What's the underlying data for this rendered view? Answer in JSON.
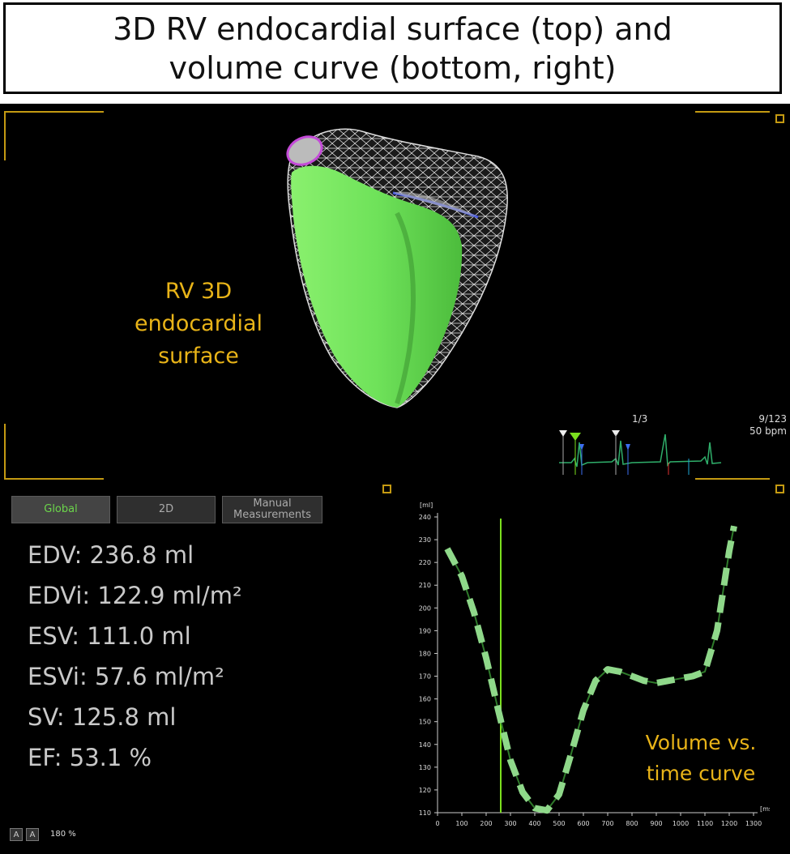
{
  "title": {
    "line1": "3D RV endocardial surface (top) and",
    "line2": "volume curve (bottom, right)"
  },
  "surface_label": [
    "RV 3D",
    "endocardial",
    "surface"
  ],
  "ecg": {
    "frame_fraction": "1/3",
    "frame_counter": "9/123",
    "heart_rate": "50 bpm"
  },
  "tabs": [
    {
      "label": "Global",
      "active": true
    },
    {
      "label": "2D",
      "active": false
    },
    {
      "label_line1": "Manual",
      "label_line2": "Measurements",
      "active": false
    }
  ],
  "measurements": [
    "EDV: 236.8 ml",
    "EDVi: 122.9 ml/m²",
    "ESV: 111.0 ml",
    "ESVi: 57.6 ml/m²",
    "SV: 125.8 ml",
    "EF: 53.1 %"
  ],
  "zoom": {
    "btn1": "A",
    "btn2": "A",
    "level": "180 %"
  },
  "curve_label": [
    "Volume vs.",
    "time curve"
  ],
  "colors": {
    "accent_orange": "#e9b418",
    "surface_green": "#6fe25a",
    "curve_green": "#8fd88a",
    "cursor_green": "#7be01e"
  },
  "chart_data": {
    "type": "line",
    "ylabel": "[ml]",
    "xlabel": "[ms]",
    "ylim": [
      110,
      240
    ],
    "xlim": [
      0,
      1300
    ],
    "yticks": [
      110,
      120,
      130,
      140,
      150,
      160,
      170,
      180,
      190,
      200,
      210,
      220,
      230,
      240
    ],
    "xticks": [
      0,
      100,
      200,
      300,
      400,
      500,
      600,
      700,
      800,
      900,
      1000,
      1100,
      1200,
      1300
    ],
    "cursor_x": 260,
    "series": [
      {
        "x": [
          40,
          100,
          150,
          200,
          250,
          300,
          350,
          400,
          450,
          500,
          550,
          600,
          650,
          700,
          750,
          800,
          850,
          900,
          950,
          1000,
          1050,
          1100,
          1150,
          1200,
          1220
        ],
        "y": [
          226,
          214,
          198,
          178,
          155,
          133,
          119,
          112,
          111,
          118,
          136,
          155,
          168,
          173,
          172,
          170,
          168,
          167,
          168,
          169,
          170,
          172,
          190,
          225,
          236
        ]
      }
    ]
  }
}
